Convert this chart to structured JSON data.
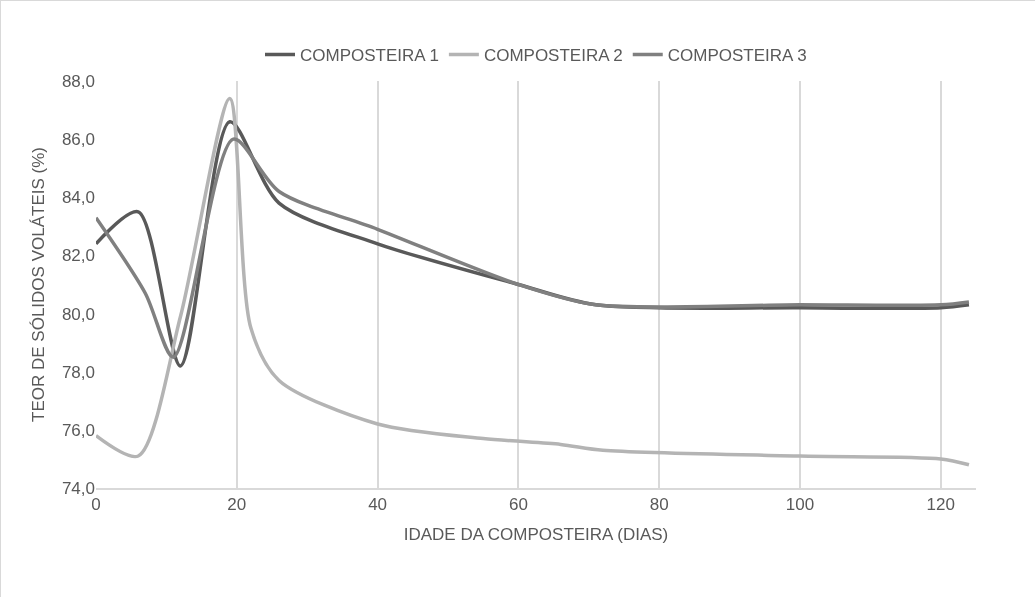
{
  "chart_data": {
    "type": "line",
    "xlabel": "IDADE DA COMPOSTEIRA (DIAS)",
    "ylabel": "TEOR DE SÓLIDOS VOLÁTEIS (%)",
    "series": [
      {
        "name": "COMPOSTEIRA 1",
        "color": "#595959",
        "x": [
          0,
          6,
          12,
          19,
          26,
          40,
          60,
          71,
          100,
          120,
          124
        ],
        "values": [
          82.4,
          83.5,
          78.2,
          86.6,
          83.8,
          82.4,
          81.0,
          80.3,
          80.2,
          80.2,
          80.3
        ]
      },
      {
        "name": "COMPOSTEIRA 2",
        "color": "#b4b4b4",
        "x": [
          0,
          6,
          12,
          19,
          22,
          26,
          40,
          55,
          66,
          72,
          100,
          120,
          124
        ],
        "values": [
          75.8,
          75.1,
          79.9,
          87.4,
          79.5,
          77.7,
          76.2,
          75.7,
          75.5,
          75.3,
          75.1,
          75.0,
          74.8
        ]
      },
      {
        "name": "COMPOSTEIRA 3",
        "color": "#808080",
        "x": [
          0,
          7,
          11,
          19.5,
          26,
          40,
          60,
          71,
          100,
          120,
          124
        ],
        "values": [
          83.3,
          80.7,
          78.5,
          86.0,
          84.2,
          82.9,
          81.0,
          80.3,
          80.3,
          80.3,
          80.4
        ]
      }
    ],
    "xlim": [
      0,
      125
    ],
    "xticks": [
      0,
      20,
      40,
      60,
      80,
      100,
      120
    ],
    "ylim": [
      74,
      88
    ],
    "yticks": [
      {
        "value": 74,
        "label": "74,0"
      },
      {
        "value": 76,
        "label": "76,0"
      },
      {
        "value": 78,
        "label": "78,0"
      },
      {
        "value": 80,
        "label": "80,0"
      },
      {
        "value": 82,
        "label": "82,0"
      },
      {
        "value": 84,
        "label": "84,0"
      },
      {
        "value": 86,
        "label": "86,0"
      },
      {
        "value": 88,
        "label": "88,0"
      }
    ],
    "grid": "x",
    "legend": "top",
    "marker": "none",
    "line_style": "solid"
  }
}
